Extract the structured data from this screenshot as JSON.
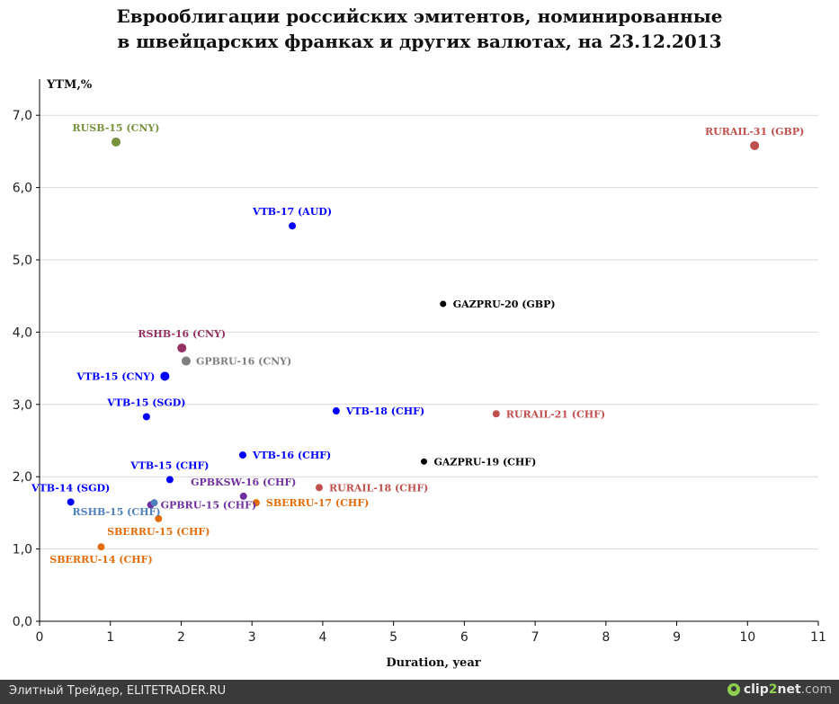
{
  "title_lines": [
    "Еврооблигации российских эмитентов, номинированные",
    "в швейцарских франках и других валютах, на 23.12.2013"
  ],
  "footer": {
    "source": "Элитный Трейдер, ELITETRADER.RU",
    "logo_part1": "clip",
    "logo_part2": "2",
    "logo_part3": "net",
    "logo_part4": ".com"
  },
  "chart_data": {
    "type": "scatter",
    "xlabel": "Duration, year",
    "ylabel": "YTM,%",
    "xlim": [
      0,
      11
    ],
    "ylim": [
      0,
      7.5
    ],
    "x_ticks": [
      "0",
      "1",
      "2",
      "3",
      "4",
      "5",
      "6",
      "7",
      "8",
      "9",
      "10",
      "11"
    ],
    "x_tick_values": [
      0,
      1,
      2,
      3,
      4,
      5,
      6,
      7,
      8,
      9,
      10,
      11
    ],
    "y_ticks": [
      "0,0",
      "1,0",
      "2,0",
      "3,0",
      "4,0",
      "5,0",
      "6,0",
      "7,0"
    ],
    "y_tick_values": [
      0,
      1,
      2,
      3,
      4,
      5,
      6,
      7
    ],
    "grid": "horizontal",
    "points": [
      {
        "label": "RUSB-15 (CNY)",
        "x": 1.08,
        "y": 6.63,
        "color": "#76923c",
        "size": 5,
        "label_pos": "above"
      },
      {
        "label": "RURAIL-31 (GBP)",
        "x": 10.1,
        "y": 6.58,
        "color": "#c0504d",
        "size": 5,
        "label_pos": "above"
      },
      {
        "label": "VTB-17 (AUD)",
        "x": 3.57,
        "y": 5.47,
        "color": "#0000ff",
        "size": 4,
        "label_pos": "above"
      },
      {
        "label": "GAZPRU-20 (GBP)",
        "x": 5.7,
        "y": 4.39,
        "color": "#000000",
        "size": 3.5,
        "label_pos": "right"
      },
      {
        "label": "RSHB-16 (CNY)",
        "x": 2.01,
        "y": 3.78,
        "color": "#953163",
        "size": 5,
        "label_pos": "above"
      },
      {
        "label": "GPBRU-16 (CNY)",
        "x": 2.07,
        "y": 3.6,
        "color": "#7f7f7f",
        "size": 5,
        "label_pos": "right"
      },
      {
        "label": "VTB-15 (CNY)",
        "x": 1.77,
        "y": 3.39,
        "color": "#0000ff",
        "size": 5,
        "label_pos": "left"
      },
      {
        "label": "VTB-15 (SGD)",
        "x": 1.51,
        "y": 2.83,
        "color": "#0000ff",
        "size": 4,
        "label_pos": "above"
      },
      {
        "label": "VTB-18 (CHF)",
        "x": 4.19,
        "y": 2.91,
        "color": "#0000ff",
        "size": 4,
        "label_pos": "right"
      },
      {
        "label": "RURAIL-21 (CHF)",
        "x": 6.45,
        "y": 2.87,
        "color": "#c0504d",
        "size": 4,
        "label_pos": "right"
      },
      {
        "label": "VTB-16 (CHF)",
        "x": 2.87,
        "y": 2.3,
        "color": "#0000ff",
        "size": 4,
        "label_pos": "right"
      },
      {
        "label": "GAZPRU-19 (CHF)",
        "x": 5.43,
        "y": 2.21,
        "color": "#000000",
        "size": 3.5,
        "label_pos": "right"
      },
      {
        "label": "VTB-15 (CHF)",
        "x": 1.84,
        "y": 1.96,
        "color": "#0000ff",
        "size": 4,
        "label_pos": "above"
      },
      {
        "label": "GPBKSW-16 (CHF)",
        "x": 2.88,
        "y": 1.73,
        "color": "#7030a0",
        "size": 4,
        "label_pos": "above"
      },
      {
        "label": "RURAIL-18 (CHF)",
        "x": 3.95,
        "y": 1.85,
        "color": "#c0504d",
        "size": 4,
        "label_pos": "right"
      },
      {
        "label": "VTB-14 (SGD)",
        "x": 0.44,
        "y": 1.65,
        "color": "#0000ff",
        "size": 4,
        "label_pos": "above"
      },
      {
        "label": "SBERRU-17 (CHF)",
        "x": 3.06,
        "y": 1.64,
        "color": "#e36c09",
        "size": 4,
        "label_pos": "right"
      },
      {
        "label": "GPBRU-15 (CHF)",
        "x": 1.57,
        "y": 1.61,
        "color": "#7030a0",
        "size": 4,
        "label_pos": "right"
      },
      {
        "label": "RSHB-15 (CHF)",
        "x": 1.62,
        "y": 1.64,
        "color": "#4f81bd",
        "size": 4,
        "label_pos": "below-left"
      },
      {
        "label": "SBERRU-15 (CHF)",
        "x": 1.68,
        "y": 1.42,
        "color": "#e36c09",
        "size": 4,
        "label_pos": "below"
      },
      {
        "label": "SBERRU-14 (CHF)",
        "x": 0.87,
        "y": 1.03,
        "color": "#e36c09",
        "size": 4,
        "label_pos": "below"
      }
    ]
  }
}
